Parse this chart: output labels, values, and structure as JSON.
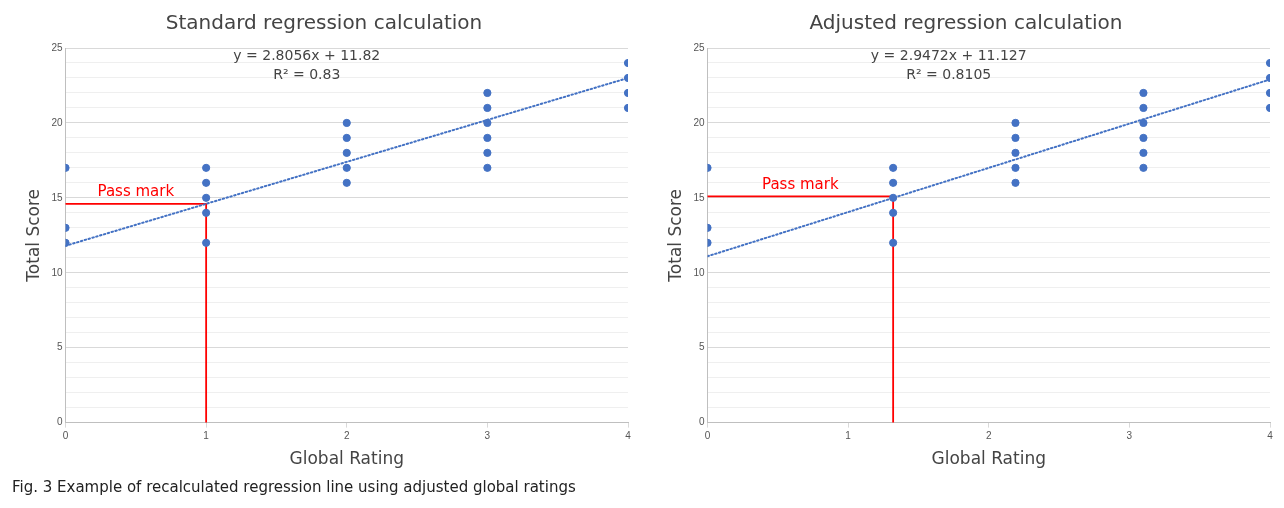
{
  "chart_data": [
    {
      "type": "scatter",
      "title": "Standard regression calculation",
      "xlabel": "Global Rating",
      "ylabel": "Total Score",
      "annotations": [
        "y = 2.8056x + 11.82",
        "R² = 0.83",
        "Pass mark",
        "Fig. 3  Example of recalculated regression line using adjusted global ratings"
      ],
      "series": [
        {
          "color": "#4472c4",
          "marker": "circle",
          "x": [
            0,
            0,
            0,
            1,
            1,
            1,
            1,
            1,
            2,
            2,
            2,
            2,
            2,
            3,
            3,
            3,
            3,
            3,
            3,
            4,
            4,
            4,
            4
          ],
          "values": [
            17,
            13,
            12,
            17,
            16,
            15,
            14,
            12,
            20,
            19,
            18,
            17,
            16,
            22,
            21,
            20,
            19,
            18,
            17,
            24,
            23,
            22,
            21
          ]
        },
        {
          "type": "line",
          "color": "#4472c4",
          "marker": "none",
          "line_style": "dotted",
          "x": [
            0,
            4
          ],
          "values": [
            11.8,
            23.0
          ]
        },
        {
          "type": "line",
          "color": "#ff0000",
          "marker": "none",
          "line_style": "solid",
          "x": [
            0,
            1,
            1
          ],
          "values": [
            14.6,
            14.6,
            0
          ]
        }
      ],
      "xlim": [
        0,
        4
      ],
      "xticks": [
        0,
        1,
        2,
        3,
        4
      ],
      "ylim": [
        0,
        25
      ],
      "yticks": [
        0,
        {
          "value": 1,
          "label": null
        },
        {
          "value": 2,
          "label": null
        },
        {
          "value": 3,
          "label": null
        },
        {
          "value": 4,
          "label": null
        },
        5,
        {
          "value": 6,
          "label": null
        },
        {
          "value": 7,
          "label": null
        },
        {
          "value": 8,
          "label": null
        },
        {
          "value": 9,
          "label": null
        },
        10,
        {
          "value": 11,
          "label": null
        },
        {
          "value": 12,
          "label": null
        },
        {
          "value": 13,
          "label": null
        },
        {
          "value": 14,
          "label": null
        },
        15,
        {
          "value": 16,
          "label": null
        },
        {
          "value": 17,
          "label": null
        },
        {
          "value": 18,
          "label": null
        },
        {
          "value": 19,
          "label": null
        },
        20,
        {
          "value": 21,
          "label": null
        },
        {
          "value": 22,
          "label": null
        },
        {
          "value": 23,
          "label": null
        },
        {
          "value": 24,
          "label": null
        },
        25
      ],
      "grid": "y",
      "legend": false
    },
    {
      "type": "scatter",
      "title": "Adjusted regression calculation",
      "xlabel": "Global Rating",
      "ylabel": "Total Score",
      "annotations": [
        "y = 2.9472x + 11.127",
        "R² = 0.8105",
        "Pass mark"
      ],
      "series": [
        {
          "color": "#4472c4",
          "marker": "circle",
          "x": [
            0,
            0,
            0,
            1.32,
            1.32,
            1.32,
            1.32,
            1.32,
            2.19,
            2.19,
            2.19,
            2.19,
            2.19,
            3.1,
            3.1,
            3.1,
            3.1,
            3.1,
            3.1,
            4,
            4,
            4,
            4
          ],
          "values": [
            17,
            13,
            12,
            17,
            16,
            15,
            14,
            12,
            20,
            19,
            18,
            17,
            16,
            22,
            21,
            20,
            19,
            18,
            17,
            24,
            23,
            22,
            21
          ]
        },
        {
          "type": "line",
          "color": "#4472c4",
          "marker": "none",
          "line_style": "dotted",
          "x": [
            0,
            4
          ],
          "values": [
            11.1,
            22.9
          ]
        },
        {
          "type": "line",
          "color": "#ff0000",
          "marker": "none",
          "line_style": "solid",
          "x": [
            0,
            1.32,
            1.32
          ],
          "values": [
            15.1,
            15.1,
            0
          ]
        }
      ],
      "xlim": [
        0,
        4
      ],
      "xticks": [
        0,
        1,
        2,
        3,
        4
      ],
      "ylim": [
        0,
        25
      ],
      "yticks": [
        0,
        {
          "value": 1,
          "label": null
        },
        {
          "value": 2,
          "label": null
        },
        {
          "value": 3,
          "label": null
        },
        {
          "value": 4,
          "label": null
        },
        5,
        {
          "value": 6,
          "label": null
        },
        {
          "value": 7,
          "label": null
        },
        {
          "value": 8,
          "label": null
        },
        {
          "value": 9,
          "label": null
        },
        10,
        {
          "value": 11,
          "label": null
        },
        {
          "value": 12,
          "label": null
        },
        {
          "value": 13,
          "label": null
        },
        {
          "value": 14,
          "label": null
        },
        15,
        {
          "value": 16,
          "label": null
        },
        {
          "value": 17,
          "label": null
        },
        {
          "value": 18,
          "label": null
        },
        {
          "value": 19,
          "label": null
        },
        20,
        {
          "value": 21,
          "label": null
        },
        {
          "value": 22,
          "label": null
        },
        {
          "value": 23,
          "label": null
        },
        {
          "value": 24,
          "label": null
        },
        25
      ],
      "grid": "y",
      "legend": false
    }
  ]
}
